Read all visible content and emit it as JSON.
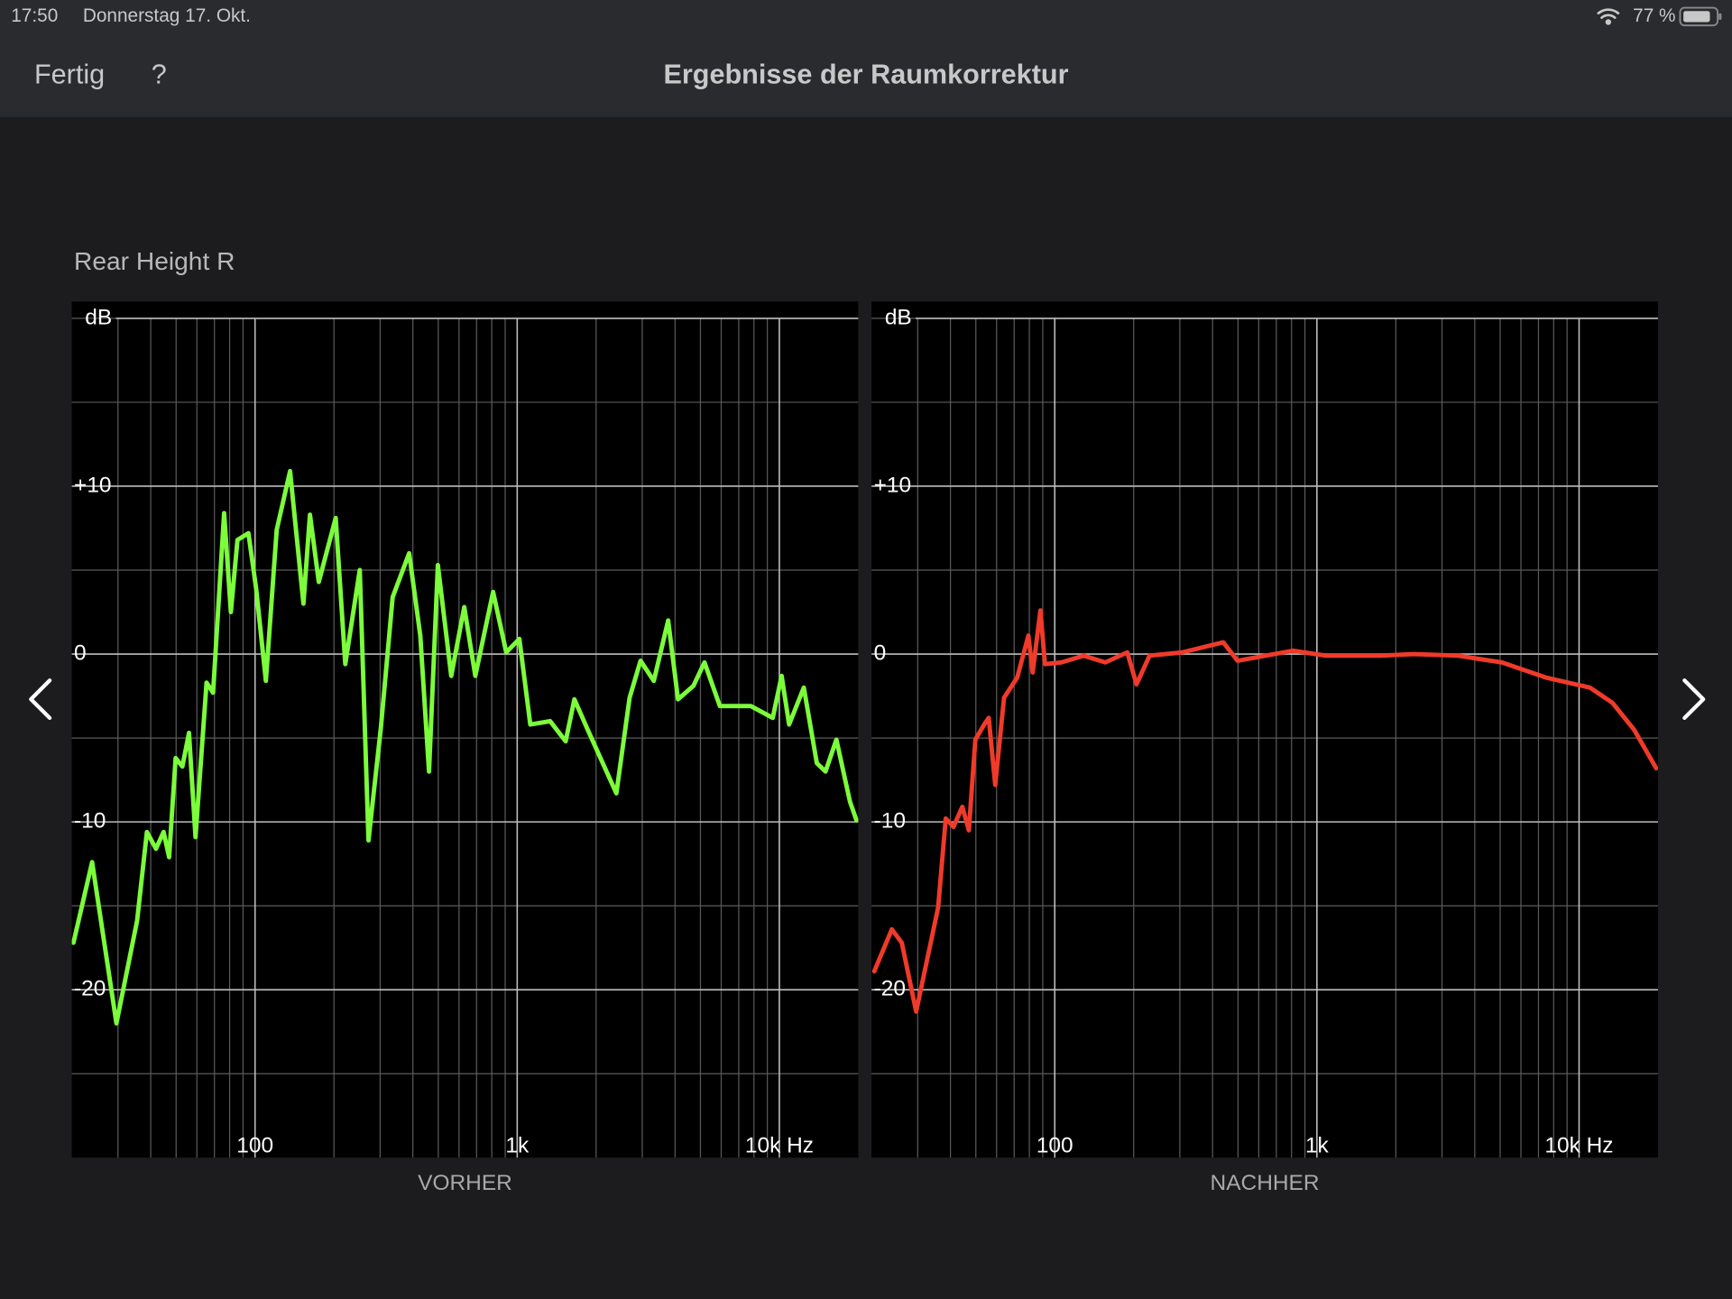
{
  "status_bar": {
    "time": "17:50",
    "date": "Donnerstag 17. Okt.",
    "battery": "77 %"
  },
  "nav": {
    "done": "Fertig",
    "help": "?",
    "title": "Ergebnisse der Raumkorrektur"
  },
  "speaker": "Rear Height R",
  "chart_data": [
    {
      "type": "line",
      "caption": "VORHER",
      "y_unit": "dB",
      "log_x": true,
      "grid": true,
      "xlim": [
        20,
        20000
      ],
      "ylim": [
        -30,
        21
      ],
      "xticks": [
        {
          "value": 100,
          "label": "100"
        },
        {
          "value": 1000,
          "label": "1k"
        },
        {
          "value": 10000,
          "label": "10k Hz"
        }
      ],
      "xgrid": [
        30,
        40,
        50,
        60,
        70,
        80,
        90,
        200,
        300,
        400,
        500,
        600,
        700,
        800,
        900,
        2000,
        3000,
        4000,
        5000,
        6000,
        7000,
        8000,
        9000
      ],
      "yticks": [
        {
          "value": 10,
          "label": "+10"
        },
        0,
        -10,
        -20
      ],
      "ygrid": [
        20,
        15,
        5,
        -5,
        -15,
        -25
      ],
      "y_unit_at": 20,
      "x": [
        20.3,
        23.9,
        29.6,
        35.5,
        38.7,
        41.9,
        44.8,
        47.0,
        49.8,
        52.8,
        56.0,
        59.3,
        65.3,
        69.2,
        76.2,
        80.9,
        85.7,
        94.4,
        101,
        110,
        121,
        136,
        153,
        162,
        175,
        203,
        221,
        251,
        271,
        302,
        335,
        387,
        427,
        461,
        498,
        560,
        628,
        692,
        809,
        908,
        1019,
        1122,
        1336,
        1531,
        1653,
        1857,
        2107,
        2390,
        2685,
        2956,
        3321,
        3767,
        4104,
        4700,
        5180,
        5930,
        7780,
        9440,
        10200,
        10900,
        12400,
        13900,
        15000,
        16500,
        18600,
        19700
      ],
      "series": [
        {
          "color": "#7cfc3a",
          "values": [
            -17.2,
            -12.4,
            -22,
            -15.9,
            -10.6,
            -11.6,
            -10.6,
            -12.1,
            -6.2,
            -6.7,
            -4.7,
            -10.9,
            -1.7,
            -2.3,
            8.4,
            2.5,
            6.8,
            7.2,
            3.9,
            -1.6,
            7.4,
            10.9,
            3.0,
            8.3,
            4.3,
            8.1,
            -0.6,
            5.0,
            -11.1,
            -4.4,
            3.4,
            6.0,
            1.1,
            -7.0,
            5.3,
            -1.3,
            2.8,
            -1.3,
            3.7,
            0.1,
            0.9,
            -4.2,
            -4.0,
            -5.2,
            -2.7,
            -4.5,
            -6.4,
            -8.3,
            -2.6,
            -0.4,
            -1.6,
            2.0,
            -2.7,
            -1.9,
            -0.5,
            -3.1,
            -3.1,
            -3.8,
            -1.3,
            -4.2,
            -2.0,
            -6.5,
            -7.0,
            -5.1,
            -8.8,
            -9.9
          ]
        }
      ]
    },
    {
      "type": "line",
      "caption": "NACHHER",
      "y_unit": "dB",
      "log_x": true,
      "grid": true,
      "xlim": [
        20,
        20000
      ],
      "ylim": [
        -30,
        21
      ],
      "xticks": [
        {
          "value": 100,
          "label": "100"
        },
        {
          "value": 1000,
          "label": "1k"
        },
        {
          "value": 10000,
          "label": "10k Hz"
        }
      ],
      "xgrid": [
        30,
        40,
        50,
        60,
        70,
        80,
        90,
        200,
        300,
        400,
        500,
        600,
        700,
        800,
        900,
        2000,
        3000,
        4000,
        5000,
        6000,
        7000,
        8000,
        9000
      ],
      "yticks": [
        {
          "value": 10,
          "label": "+10"
        },
        0,
        -10,
        -20
      ],
      "ygrid": [
        20,
        15,
        5,
        -5,
        -15,
        -25
      ],
      "y_unit_at": 20,
      "x": [
        20.5,
        23.9,
        26.1,
        29.6,
        35.9,
        38.4,
        41.1,
        44.4,
        47,
        49.8,
        53.8,
        56.0,
        59.3,
        64.1,
        71.9,
        79.3,
        82.4,
        88.2,
        91.7,
        106,
        129,
        156,
        189,
        205,
        230,
        307,
        439,
        498,
        809,
        1081,
        1754,
        2344,
        3452,
        5080,
        7480,
        11000,
        13400,
        16200,
        19700
      ],
      "series": [
        {
          "color": "#f03a2a",
          "values": [
            -18.9,
            -16.4,
            -17.2,
            -21.3,
            -15.1,
            -9.8,
            -10.3,
            -9.1,
            -10.5,
            -5.1,
            -4.2,
            -3.8,
            -7.8,
            -2.6,
            -1.4,
            1.1,
            -1.1,
            2.6,
            -0.6,
            -0.5,
            -0.1,
            -0.5,
            0.1,
            -1.8,
            -0.1,
            0.1,
            0.7,
            -0.4,
            0.2,
            -0.1,
            -0.1,
            0,
            -0.1,
            -0.5,
            -1.4,
            -2.0,
            -2.9,
            -4.5,
            -6.8
          ]
        }
      ]
    }
  ]
}
